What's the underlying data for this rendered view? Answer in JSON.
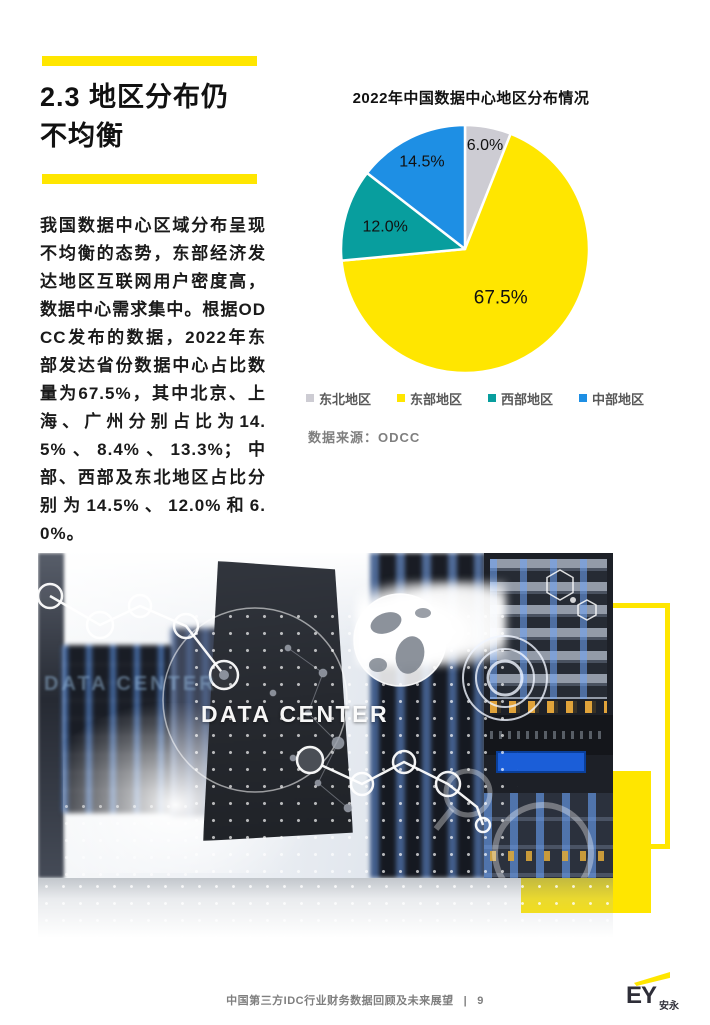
{
  "section": {
    "heading": "2.3 地区分布仍不均衡",
    "body": "我国数据中心区域分布呈现不均衡的态势，东部经济发达地区互联网用户密度高，数据中心需求集中。根据ODCC发布的数据，2022年东部发达省份数据中心占比数量为67.5%，其中北京、上海、广州分别占比为14.5%、8.4%、13.3%；中部、西部及东北地区占比分别为14.5%、12.0%和6.0%。"
  },
  "chart_data": {
    "type": "pie",
    "title": "2022年中国数据中心地区分布情况",
    "slices": [
      {
        "name": "东北地区",
        "value": 6.0,
        "label": "6.0%",
        "color": "#CDCCD3"
      },
      {
        "name": "东部地区",
        "value": 67.5,
        "label": "67.5%",
        "color": "#FFE600"
      },
      {
        "name": "西部地区",
        "value": 12.0,
        "label": "12.0%",
        "color": "#089E9E"
      },
      {
        "name": "中部地区",
        "value": 14.5,
        "label": "14.5%",
        "color": "#1E8FE4"
      }
    ],
    "start_angle_deg": 0,
    "direction": "clockwise",
    "legend_position": "bottom",
    "source": "数据来源：ODCC"
  },
  "photo": {
    "main_caption": "DATA CENTER",
    "ghost_caption": "DATA CENTER"
  },
  "footer": {
    "doc_title": "中国第三方IDC行业财务数据回顾及未来展望",
    "separator": "|",
    "page_number": "9"
  },
  "brand": {
    "logo_text": "EY",
    "logo_suffix": "安永"
  },
  "colors": {
    "accent_yellow": "#FFE600"
  }
}
